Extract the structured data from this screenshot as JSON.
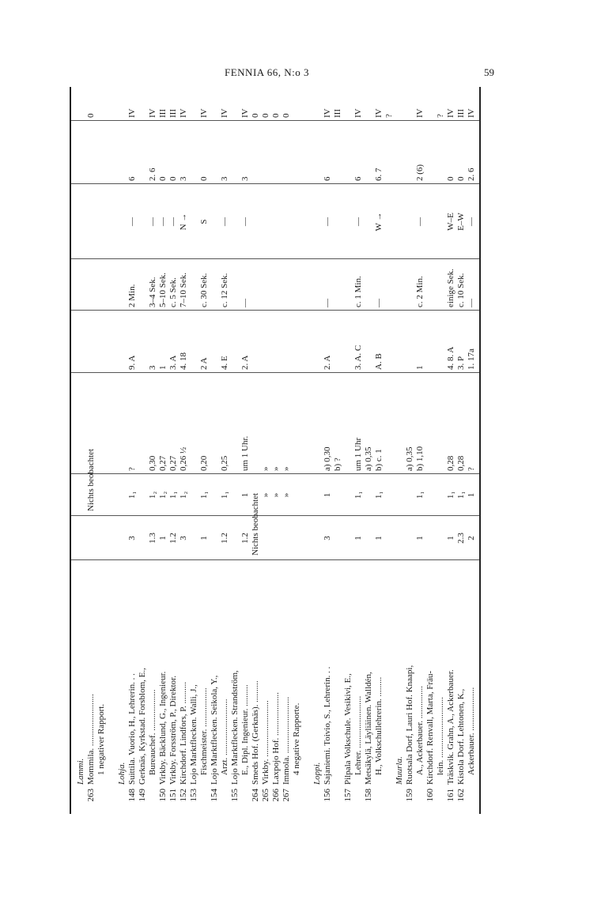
{
  "header": {
    "running_title": "FENNIA 66, N:o 3",
    "page_number": "59"
  },
  "table": {
    "lines": [
      {
        "name": "Lammi.",
        "italic": true
      },
      {
        "nr": "263",
        "name": "Mommila. ........................",
        "span": {
          "from": 1,
          "to": 2,
          "text": "Nichts beobachtet"
        },
        "cells": [
          "",
          "",
          "",
          "",
          "",
          "",
          "",
          "0"
        ]
      },
      {
        "name": "1 negativer Rapport.",
        "indent": true
      },
      {},
      {
        "name": "Lohja.",
        "italic": true
      },
      {
        "nr": "148",
        "name": "Suittila. Vuorio, H., Lehrerin. . .",
        "cells": [
          "3",
          "1₁",
          "?",
          "9. A",
          "2 Min.",
          "—",
          "6",
          "IV"
        ]
      },
      {
        "nr": "149",
        "name": "Gerknäs, Kyrkstad. Forsblom, E.,"
      },
      {
        "name": "Bureauchef. ...................",
        "indent": true,
        "cells": [
          "1.3",
          "1₂",
          "0,30",
          "3",
          "3–4 Sek.",
          "—",
          "2. 6",
          "IV"
        ]
      },
      {
        "nr": "150",
        "name": "Virkby. Bäcklund, G., Ingenieur.",
        "cells": [
          "1",
          "1₂",
          "0,27",
          "1",
          "5–10 Sek.",
          "—",
          "0",
          "III"
        ]
      },
      {
        "nr": "151",
        "name": "Virkby. Forsström, P., Direktor.",
        "cells": [
          "1.2",
          "1₁",
          "0,27",
          "3. A",
          "c. 5 Sek.",
          "—",
          "0",
          "III"
        ]
      },
      {
        "nr": "152",
        "name": "Kirchdorf. Lindfors, P. ..........",
        "cells": [
          "3",
          "1₂",
          "0,26 ½",
          "4. 18",
          "7–10 Sek.",
          "N →",
          "3",
          "IV"
        ]
      },
      {
        "nr": "153",
        "name": "Lojo Marktflecken. Walli, J.,"
      },
      {
        "name": "Fischmeister. ..................",
        "indent": true,
        "cells": [
          "1",
          "1₁",
          "0,20",
          "2 A",
          "c. 30 Sek.",
          "S",
          "0",
          "IV"
        ]
      },
      {
        "nr": "154",
        "name": "Lojo Marktflecken. Seikola, Y.,"
      },
      {
        "name": "Arzt. ..........................",
        "indent": true,
        "cells": [
          "1.2",
          "1₁",
          "0,25",
          "4. E",
          "c. 12 Sek.",
          "—",
          "3",
          "IV"
        ]
      },
      {
        "nr": "155",
        "name": "Lojo Marktflecken. Strandström,"
      },
      {
        "name": "E., Dipl. Ingenieur. ..........",
        "indent": true,
        "cells": [
          "1.2",
          "1",
          "um 1 Uhr.",
          "2. A",
          "—",
          "—",
          "3",
          "IV"
        ]
      },
      {
        "nr": "264",
        "name": "Smeds Hof. (Gerknäs). ..........",
        "span": {
          "from": 0,
          "to": 2,
          "text": "Nichts beobachtet"
        },
        "cells": [
          "",
          "",
          "",
          "",
          "",
          "",
          "",
          "0"
        ]
      },
      {
        "nr": "265",
        "name": "Virkby. ..........................",
        "cells": [
          "",
          "»",
          "»",
          "",
          "",
          "",
          "",
          "0"
        ]
      },
      {
        "nr": "266",
        "name": "Laxpojo Hof. ....................",
        "cells": [
          "",
          "»",
          "»",
          "",
          "",
          "",
          "",
          "0"
        ]
      },
      {
        "nr": "267",
        "name": "Immola. ..........................",
        "cells": [
          "",
          "»",
          "»",
          "",
          "",
          "",
          "",
          "0"
        ]
      },
      {
        "name": "4 negative Rapporte.",
        "indent": true
      },
      {},
      {
        "name": "Loppi.",
        "italic": true
      },
      {
        "nr": "156",
        "name": "Sajaniemi. Toivio, S., Lehrerin. . .",
        "cells": [
          "3",
          "1",
          "a) 0,30",
          "2. A",
          "—",
          "—",
          "6",
          "IV"
        ]
      },
      {
        "cells": [
          "",
          "",
          "b) ?",
          "",
          "",
          "",
          "",
          "III"
        ]
      },
      {
        "nr": "157",
        "name": "Pilpala Volkschule. Vesikivi, E.,"
      },
      {
        "name": "Lehrer. ........................",
        "indent": true,
        "cells": [
          "1",
          "1₁",
          "um 1 Uhr",
          "3. A. C",
          "c. 1 Min.",
          "—",
          "6",
          "IV"
        ]
      },
      {
        "nr": "158",
        "name": "Metsäkylä, Läyliäinen. Walldén,",
        "cells": [
          "",
          "",
          "a) 0,35",
          "",
          "",
          "",
          "",
          ""
        ]
      },
      {
        "name": "H., Volkschullehrerin. .........",
        "indent": true,
        "cells": [
          "1",
          "1₁",
          "b) c. 1",
          "A. B",
          "—",
          "W →",
          "6. 7",
          "IV"
        ]
      },
      {
        "cells": [
          "",
          "",
          "",
          "",
          "",
          "",
          "",
          "?"
        ]
      },
      {
        "name": "Muurla.",
        "italic": true
      },
      {
        "nr": "159",
        "name": "Ruotsala Dorf, Lauri Hof. Knaapi,",
        "cells": [
          "",
          "",
          "a) 0,35",
          "",
          "",
          "",
          "",
          ""
        ]
      },
      {
        "name": "A., Ackerbauer. ...............",
        "indent": true,
        "cells": [
          "1",
          "1₁",
          "b) 1,10",
          "1",
          "c. 2 Min.",
          "—",
          "2 (6)",
          "IV"
        ]
      },
      {
        "nr": "160",
        "name": "Kirchdorf. Renvall, Marta, Fräu-"
      },
      {
        "name": "lein. ............................",
        "indent": true,
        "cells": [
          "",
          "",
          "",
          "",
          "",
          "",
          "",
          "?"
        ]
      },
      {
        "nr": "161",
        "name": "Träskvik. Grahn, A., Ackerbauer.",
        "cells": [
          "1",
          "1₁",
          "0,28",
          "4. 8. A",
          "einige Sek.",
          "W–E",
          "0",
          "IV"
        ]
      },
      {
        "nr": "162",
        "name": "Kistola Dorf. Lehtonen, K.,",
        "cells": [
          "2.3",
          "1₁",
          "0,28",
          "3. P",
          "c. 10 Sek.",
          "E–W",
          "0",
          "III"
        ]
      },
      {
        "name": "Ackerbauer. ....................",
        "indent": true,
        "cells": [
          "2",
          "1",
          "?",
          "1. 17a",
          "—",
          "—",
          "2. 6",
          "IV"
        ]
      }
    ]
  }
}
